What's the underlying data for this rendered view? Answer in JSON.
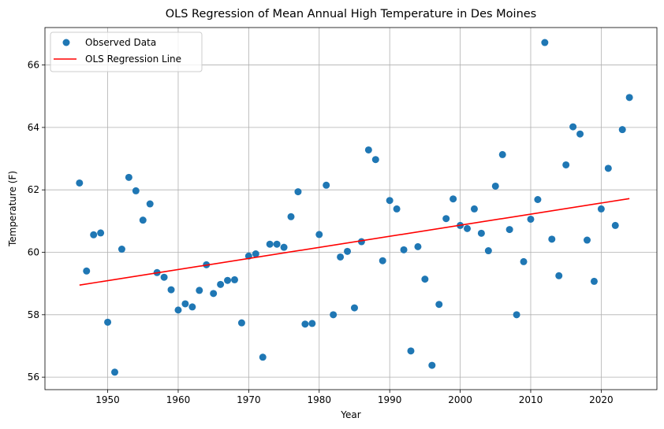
{
  "chart_data": {
    "type": "scatter",
    "title": "OLS Regression of Mean Annual High Temperature in Des Moines",
    "xlabel": "Year",
    "ylabel": "Temperature (F)",
    "xlim": [
      1941.1,
      2027.9
    ],
    "ylim": [
      55.6,
      67.2
    ],
    "xticks": [
      1950,
      1960,
      1970,
      1980,
      1990,
      2000,
      2010,
      2020
    ],
    "yticks": [
      56,
      58,
      60,
      62,
      64,
      66
    ],
    "grid": true,
    "legend_position": "top-left",
    "series": [
      {
        "name": "Observed Data",
        "kind": "scatter",
        "color": "#1f77b4",
        "points": [
          [
            1946,
            62.22
          ],
          [
            1947,
            59.4
          ],
          [
            1948,
            60.56
          ],
          [
            1949,
            60.62
          ],
          [
            1950,
            57.76
          ],
          [
            1951,
            56.16
          ],
          [
            1952,
            60.1
          ],
          [
            1953,
            62.4
          ],
          [
            1954,
            61.97
          ],
          [
            1955,
            61.03
          ],
          [
            1956,
            61.55
          ],
          [
            1957,
            59.35
          ],
          [
            1958,
            59.2
          ],
          [
            1959,
            58.8
          ],
          [
            1960,
            58.15
          ],
          [
            1961,
            58.35
          ],
          [
            1962,
            58.25
          ],
          [
            1963,
            58.78
          ],
          [
            1964,
            59.6
          ],
          [
            1965,
            58.68
          ],
          [
            1966,
            58.97
          ],
          [
            1967,
            59.1
          ],
          [
            1968,
            59.12
          ],
          [
            1969,
            57.74
          ],
          [
            1970,
            59.88
          ],
          [
            1971,
            59.95
          ],
          [
            1972,
            56.64
          ],
          [
            1973,
            60.26
          ],
          [
            1974,
            60.26
          ],
          [
            1975,
            60.16
          ],
          [
            1976,
            61.14
          ],
          [
            1977,
            61.94
          ],
          [
            1978,
            57.7
          ],
          [
            1979,
            57.72
          ],
          [
            1980,
            60.57
          ],
          [
            1981,
            62.15
          ],
          [
            1982,
            58.0
          ],
          [
            1983,
            59.85
          ],
          [
            1984,
            60.03
          ],
          [
            1985,
            58.22
          ],
          [
            1986,
            60.34
          ],
          [
            1987,
            63.28
          ],
          [
            1988,
            62.97
          ],
          [
            1989,
            59.73
          ],
          [
            1990,
            61.66
          ],
          [
            1991,
            61.39
          ],
          [
            1992,
            60.08
          ],
          [
            1993,
            56.84
          ],
          [
            1994,
            60.18
          ],
          [
            1995,
            59.14
          ],
          [
            1996,
            56.38
          ],
          [
            1997,
            58.33
          ],
          [
            1998,
            61.08
          ],
          [
            1999,
            61.71
          ],
          [
            2000,
            60.86
          ],
          [
            2001,
            60.76
          ],
          [
            2002,
            61.39
          ],
          [
            2003,
            60.61
          ],
          [
            2004,
            60.05
          ],
          [
            2005,
            62.12
          ],
          [
            2006,
            63.13
          ],
          [
            2007,
            60.73
          ],
          [
            2008,
            58.0
          ],
          [
            2009,
            59.7
          ],
          [
            2010,
            61.06
          ],
          [
            2011,
            61.69
          ],
          [
            2012,
            66.72
          ],
          [
            2013,
            60.42
          ],
          [
            2014,
            59.25
          ],
          [
            2015,
            62.8
          ],
          [
            2016,
            64.02
          ],
          [
            2017,
            63.79
          ],
          [
            2018,
            60.39
          ],
          [
            2019,
            59.07
          ],
          [
            2020,
            61.39
          ],
          [
            2021,
            62.69
          ],
          [
            2022,
            60.86
          ],
          [
            2023,
            63.93
          ],
          [
            2024,
            64.96
          ]
        ]
      },
      {
        "name": "OLS Regression Line",
        "kind": "line",
        "color": "#ff0000",
        "points": [
          [
            1946,
            58.95
          ],
          [
            2024,
            61.72
          ]
        ]
      }
    ]
  }
}
